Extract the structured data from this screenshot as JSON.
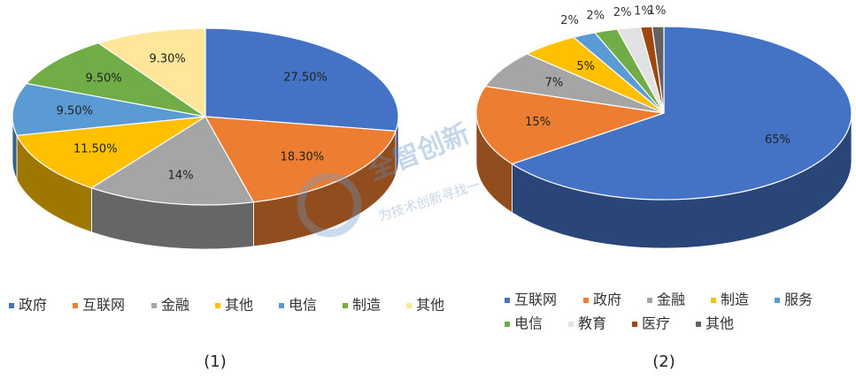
{
  "chart_data": [
    {
      "type": "pie3d",
      "caption": "(1)",
      "categories": [
        "政府",
        "互联网",
        "金融",
        "其他",
        "电信",
        "制造",
        "其他"
      ],
      "values": [
        27.5,
        18.3,
        14,
        11.5,
        9.5,
        9.5,
        9.3
      ],
      "value_labels": [
        "27.50%",
        "18.30%",
        "14%",
        "11.50%",
        "9.50%",
        "9.50%",
        "9.30%"
      ],
      "colors": [
        "#4472c4",
        "#ed7d31",
        "#a5a5a5",
        "#ffc000",
        "#5b9bd5",
        "#70ad47",
        "#ffe699"
      ]
    },
    {
      "type": "pie3d",
      "caption": "(2)",
      "categories": [
        "互联网",
        "政府",
        "金融",
        "制造",
        "服务",
        "电信",
        "教育",
        "医疗",
        "其他"
      ],
      "values": [
        65,
        15,
        7,
        5,
        2,
        2,
        2,
        1,
        1
      ],
      "value_labels": [
        "65%",
        "15%",
        "7%",
        "5%",
        "2%",
        "2%",
        "2%",
        "1%",
        "1%"
      ],
      "colors": [
        "#4472c4",
        "#ed7d31",
        "#a5a5a5",
        "#ffc000",
        "#5b9bd5",
        "#70ad47",
        "#e2e2e2",
        "#9e480e",
        "#636363"
      ]
    }
  ],
  "watermark": {
    "title": "全智创新",
    "subtitle": "为技术创新寻找一"
  }
}
